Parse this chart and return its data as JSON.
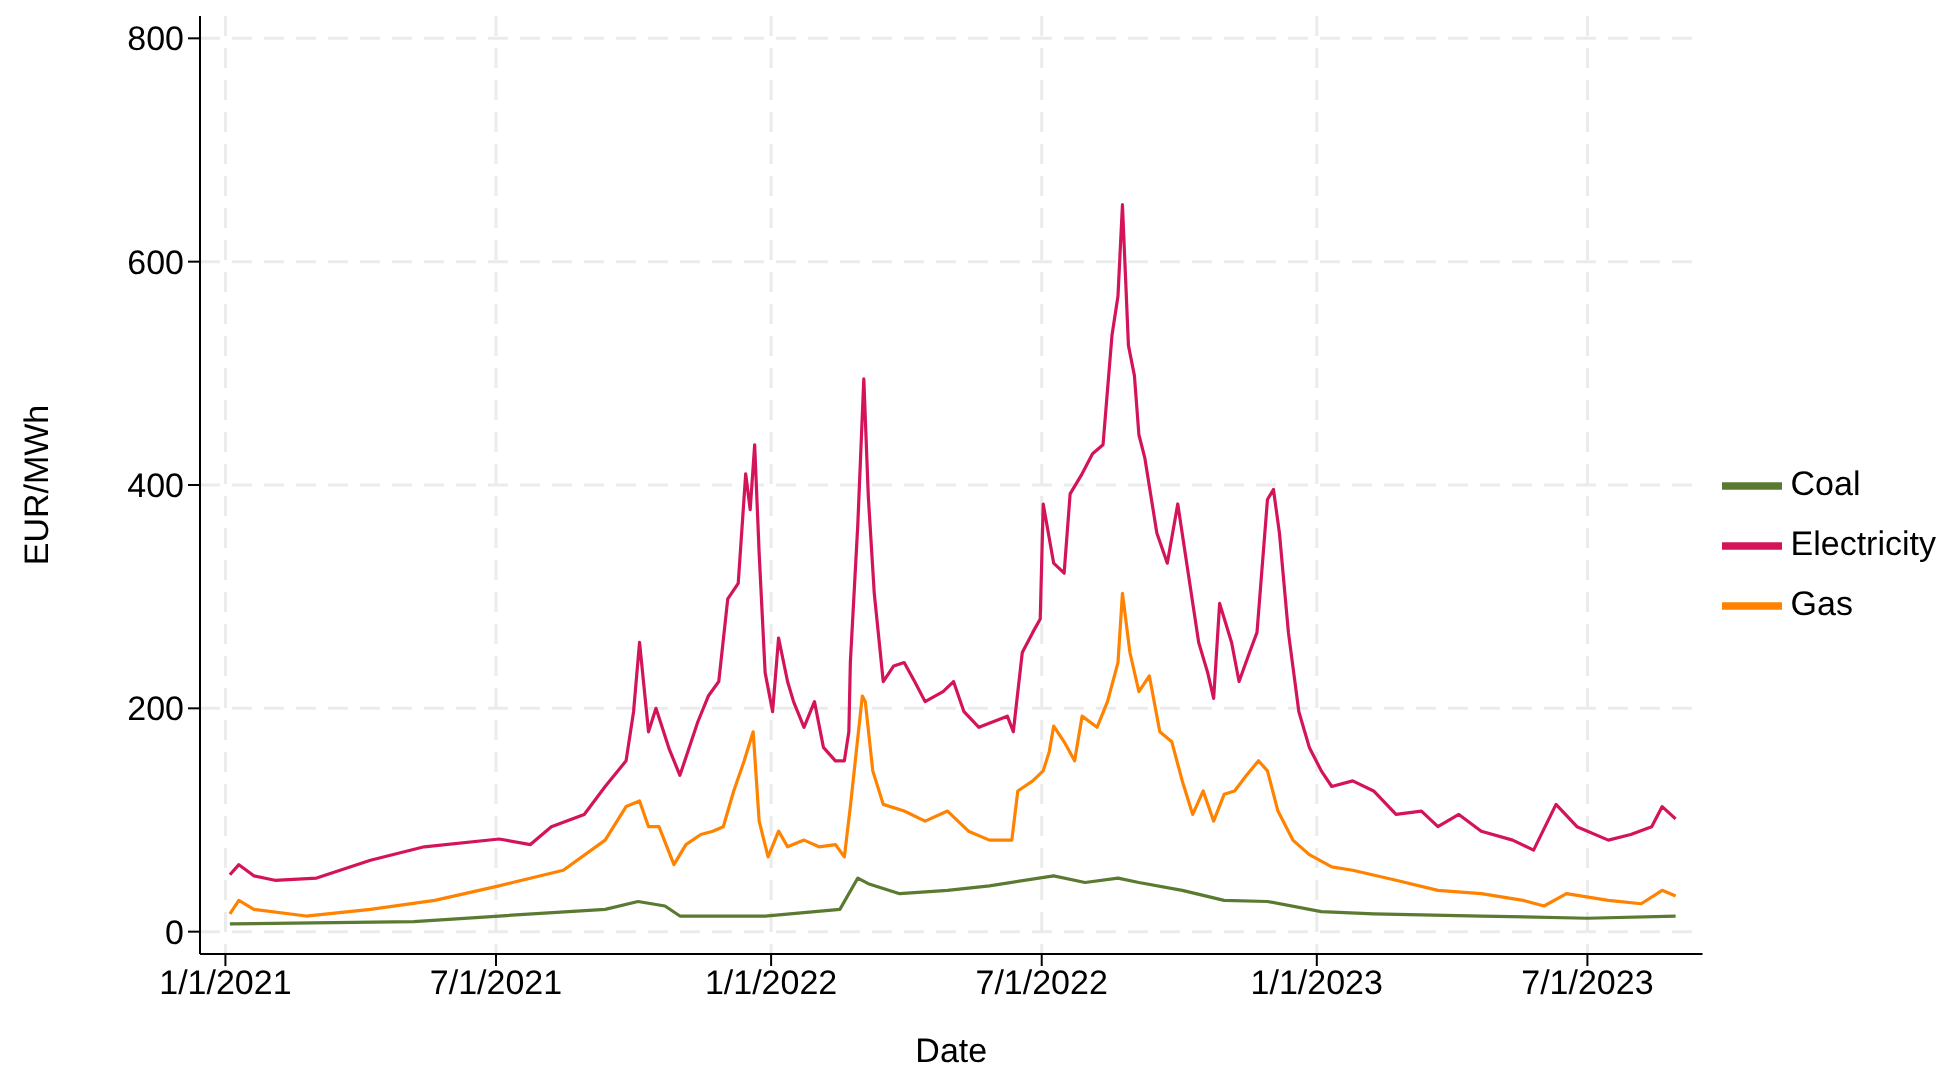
{
  "chart_data": {
    "type": "line",
    "xlabel": "Date",
    "ylabel": "EUR/MWh",
    "xlim": [
      "2020-12-15",
      "2023-09-16"
    ],
    "ylim": [
      -20,
      820
    ],
    "xticks": [
      {
        "value": "2021-01-01",
        "label": "1/1/2021"
      },
      {
        "value": "2021-07-01",
        "label": "7/1/2021"
      },
      {
        "value": "2022-01-01",
        "label": "1/1/2022"
      },
      {
        "value": "2022-07-01",
        "label": "7/1/2022"
      },
      {
        "value": "2023-01-01",
        "label": "1/1/2023"
      },
      {
        "value": "2023-07-01",
        "label": "7/1/2023"
      }
    ],
    "yticks": [
      0,
      200,
      400,
      600,
      800
    ],
    "grid": true,
    "legend": "right",
    "marker": "none",
    "line_style": "solid",
    "series": [
      {
        "name": "Gas",
        "color": "#ff8200",
        "x": [
          "2021-01-04",
          "2021-01-10",
          "2021-01-20",
          "2021-02-24",
          "2021-04-08",
          "2021-05-21",
          "2021-07-03",
          "2021-08-15",
          "2021-09-12",
          "2021-09-26",
          "2021-10-05",
          "2021-10-11",
          "2021-10-18",
          "2021-10-28",
          "2021-11-05",
          "2021-11-15",
          "2021-11-23",
          "2021-11-30",
          "2021-12-07",
          "2021-12-14",
          "2021-12-20",
          "2021-12-24",
          "2021-12-30",
          "2022-01-06",
          "2022-01-12",
          "2022-01-23",
          "2022-02-02",
          "2022-02-13",
          "2022-02-19",
          "2022-02-23",
          "2022-03-03",
          "2022-03-05",
          "2022-03-10",
          "2022-03-17",
          "2022-03-31",
          "2022-04-14",
          "2022-04-29",
          "2022-05-13",
          "2022-05-27",
          "2022-06-11",
          "2022-06-15",
          "2022-06-25",
          "2022-07-02",
          "2022-07-06",
          "2022-07-09",
          "2022-07-16",
          "2022-07-23",
          "2022-07-28",
          "2022-08-07",
          "2022-08-14",
          "2022-08-21",
          "2022-08-24",
          "2022-08-29",
          "2022-09-04",
          "2022-09-11",
          "2022-09-18",
          "2022-09-26",
          "2022-10-03",
          "2022-10-10",
          "2022-10-17",
          "2022-10-24",
          "2022-10-31",
          "2022-11-07",
          "2022-11-15",
          "2022-11-23",
          "2022-11-29",
          "2022-12-06",
          "2022-12-16",
          "2022-12-27",
          "2023-01-11",
          "2023-01-25",
          "2023-02-23",
          "2023-03-23",
          "2023-04-21",
          "2023-05-19",
          "2023-06-02",
          "2023-06-17",
          "2023-07-15",
          "2023-08-06",
          "2023-08-20",
          "2023-08-29"
        ],
        "values": [
          16,
          28,
          20,
          14,
          20,
          28,
          41,
          55,
          82,
          112,
          117,
          94,
          94,
          60,
          78,
          87,
          90,
          94,
          126,
          153,
          179,
          99,
          67,
          90,
          76,
          82,
          76,
          78,
          67,
          112,
          211,
          206,
          144,
          114,
          108,
          99,
          108,
          90,
          82,
          82,
          126,
          135,
          144,
          161,
          184,
          170,
          153,
          193,
          183,
          206,
          241,
          303,
          250,
          215,
          229,
          179,
          170,
          135,
          105,
          126,
          99,
          123,
          126,
          140,
          153,
          144,
          108,
          82,
          69,
          58,
          55,
          46,
          37,
          34,
          28,
          23,
          34,
          28,
          25,
          37,
          32
        ]
      },
      {
        "name": "Coal",
        "color": "#5a7a32",
        "x": [
          "2021-01-04",
          "2021-05-07",
          "2021-07-03",
          "2021-09-12",
          "2021-10-04",
          "2021-10-22",
          "2021-11-01",
          "2021-11-30",
          "2021-12-28",
          "2022-02-16",
          "2022-02-28",
          "2022-03-07",
          "2022-03-28",
          "2022-04-29",
          "2022-05-27",
          "2022-07-09",
          "2022-07-30",
          "2022-08-21",
          "2022-09-04",
          "2022-10-03",
          "2022-10-31",
          "2022-11-29",
          "2023-01-04",
          "2023-02-08",
          "2023-04-21",
          "2023-07-01",
          "2023-08-29"
        ],
        "values": [
          7,
          9,
          14,
          20,
          27,
          23,
          14,
          14,
          14,
          20,
          48,
          43,
          34,
          37,
          41,
          50,
          44,
          48,
          44,
          37,
          28,
          27,
          18,
          16,
          14,
          12,
          14
        ]
      },
      {
        "name": "Electricity",
        "color": "#d4145a",
        "x": [
          "2021-01-04",
          "2021-01-10",
          "2021-01-20",
          "2021-02-03",
          "2021-03-03",
          "2021-04-08",
          "2021-05-14",
          "2021-07-03",
          "2021-07-24",
          "2021-08-07",
          "2021-08-29",
          "2021-09-12",
          "2021-09-26",
          "2021-10-01",
          "2021-10-05",
          "2021-10-11",
          "2021-10-16",
          "2021-10-25",
          "2021-11-01",
          "2021-11-13",
          "2021-11-20",
          "2021-11-27",
          "2021-12-03",
          "2021-12-10",
          "2021-12-15",
          "2021-12-18",
          "2021-12-21",
          "2021-12-24",
          "2021-12-28",
          "2022-01-02",
          "2022-01-06",
          "2022-01-12",
          "2022-01-16",
          "2022-01-23",
          "2022-01-30",
          "2022-02-05",
          "2022-02-13",
          "2022-02-19",
          "2022-02-22",
          "2022-02-23",
          "2022-02-28",
          "2022-03-04",
          "2022-03-07",
          "2022-03-11",
          "2022-03-17",
          "2022-03-24",
          "2022-03-31",
          "2022-04-07",
          "2022-04-14",
          "2022-04-26",
          "2022-05-03",
          "2022-05-10",
          "2022-05-20",
          "2022-06-08",
          "2022-06-12",
          "2022-06-18",
          "2022-06-25",
          "2022-06-30",
          "2022-07-02",
          "2022-07-09",
          "2022-07-16",
          "2022-07-20",
          "2022-07-28",
          "2022-08-04",
          "2022-08-11",
          "2022-08-17",
          "2022-08-21",
          "2022-08-24",
          "2022-08-28",
          "2022-09-01",
          "2022-09-04",
          "2022-09-08",
          "2022-09-16",
          "2022-09-23",
          "2022-09-30",
          "2022-10-07",
          "2022-10-14",
          "2022-10-20",
          "2022-10-24",
          "2022-10-28",
          "2022-11-05",
          "2022-11-10",
          "2022-11-17",
          "2022-11-22",
          "2022-11-29",
          "2022-12-03",
          "2022-12-07",
          "2022-12-13",
          "2022-12-20",
          "2022-12-27",
          "2023-01-04",
          "2023-01-11",
          "2023-01-25",
          "2023-02-08",
          "2023-02-23",
          "2023-03-12",
          "2023-03-23",
          "2023-04-06",
          "2023-04-21",
          "2023-05-12",
          "2023-05-26",
          "2023-06-10",
          "2023-06-24",
          "2023-07-15",
          "2023-07-30",
          "2023-08-13",
          "2023-08-20",
          "2023-08-29"
        ],
        "values": [
          51,
          60,
          50,
          46,
          48,
          64,
          76,
          83,
          78,
          94,
          105,
          130,
          153,
          197,
          259,
          179,
          200,
          163,
          140,
          188,
          211,
          224,
          298,
          312,
          410,
          378,
          436,
          339,
          232,
          197,
          263,
          224,
          206,
          183,
          206,
          165,
          153,
          153,
          179,
          241,
          365,
          495,
          390,
          303,
          224,
          238,
          241,
          224,
          206,
          215,
          224,
          197,
          183,
          193,
          179,
          250,
          268,
          280,
          383,
          330,
          321,
          392,
          410,
          428,
          436,
          534,
          569,
          651,
          525,
          498,
          445,
          424,
          357,
          330,
          383,
          321,
          259,
          232,
          209,
          294,
          259,
          224,
          250,
          268,
          387,
          396,
          357,
          268,
          197,
          165,
          144,
          130,
          135,
          126,
          105,
          108,
          94,
          105,
          90,
          82,
          73,
          114,
          94,
          82,
          87,
          94,
          112,
          101
        ]
      }
    ]
  }
}
